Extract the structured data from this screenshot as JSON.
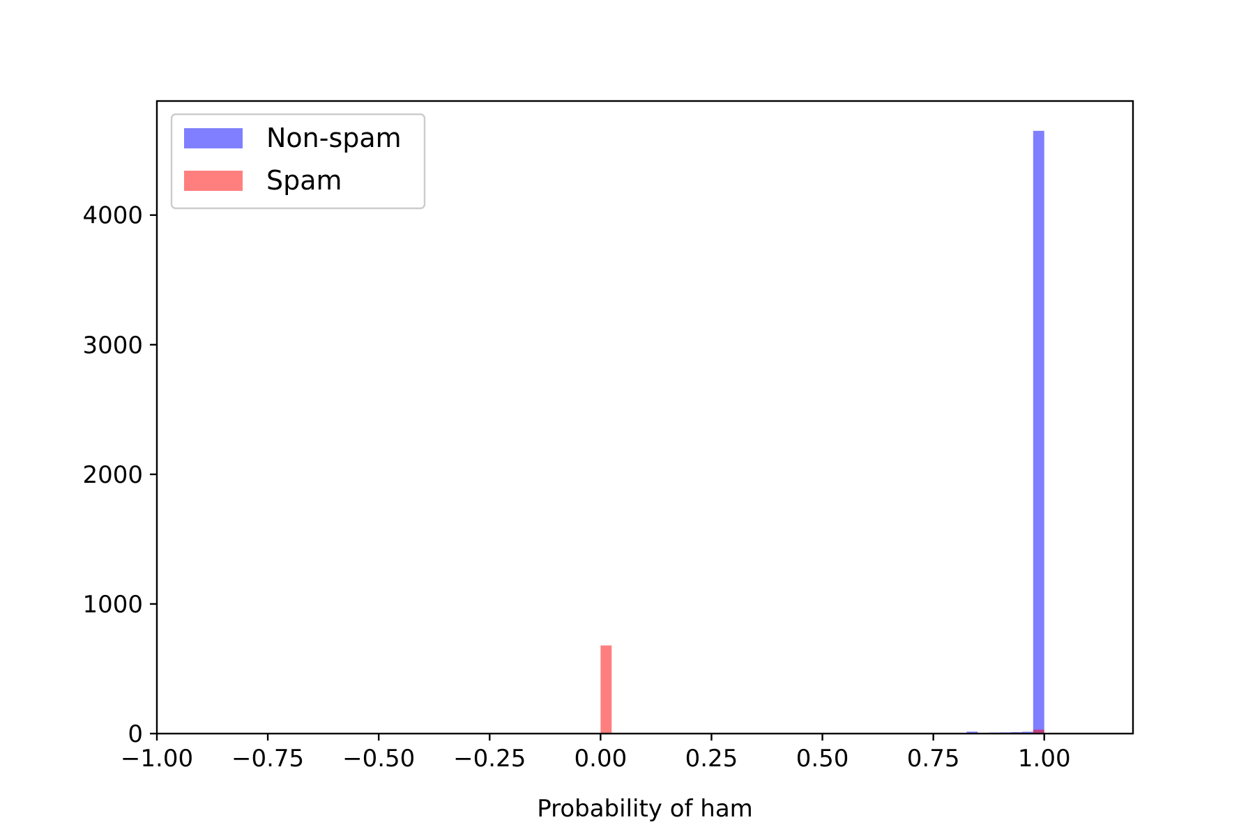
{
  "chart_data": {
    "type": "bar",
    "title": "",
    "xlabel": "Probability of ham",
    "ylabel": "",
    "xlim": [
      -1.0,
      1.2
    ],
    "ylim": [
      0,
      4880
    ],
    "x_ticks": [
      -1.0,
      -0.75,
      -0.5,
      -0.25,
      0.0,
      0.25,
      0.5,
      0.75,
      1.0
    ],
    "x_tick_labels": [
      "−1.00",
      "−0.75",
      "−0.50",
      "−0.25",
      "0.00",
      "0.25",
      "0.50",
      "0.75",
      "1.00"
    ],
    "y_ticks": [
      0,
      1000,
      2000,
      3000,
      4000
    ],
    "y_tick_labels": [
      "0",
      "1000",
      "2000",
      "3000",
      "4000"
    ],
    "grid": false,
    "legend": {
      "placement": "top-left"
    },
    "series": [
      {
        "name": "Non-spam",
        "color": "#0000ff",
        "opacity": 0.5,
        "bins": [
          {
            "x0": 0.825,
            "x1": 0.85,
            "value": 15
          },
          {
            "x0": 0.85,
            "x1": 0.875,
            "value": 6
          },
          {
            "x0": 0.875,
            "x1": 0.9,
            "value": 8
          },
          {
            "x0": 0.9,
            "x1": 0.925,
            "value": 9
          },
          {
            "x0": 0.925,
            "x1": 0.95,
            "value": 11
          },
          {
            "x0": 0.95,
            "x1": 0.975,
            "value": 14
          },
          {
            "x0": 0.975,
            "x1": 1.0,
            "value": 4650
          }
        ]
      },
      {
        "name": "Spam",
        "color": "#ff0000",
        "opacity": 0.5,
        "bins": [
          {
            "x0": 0.0,
            "x1": 0.025,
            "value": 680
          },
          {
            "x0": 0.975,
            "x1": 1.0,
            "value": 30
          }
        ]
      }
    ]
  }
}
